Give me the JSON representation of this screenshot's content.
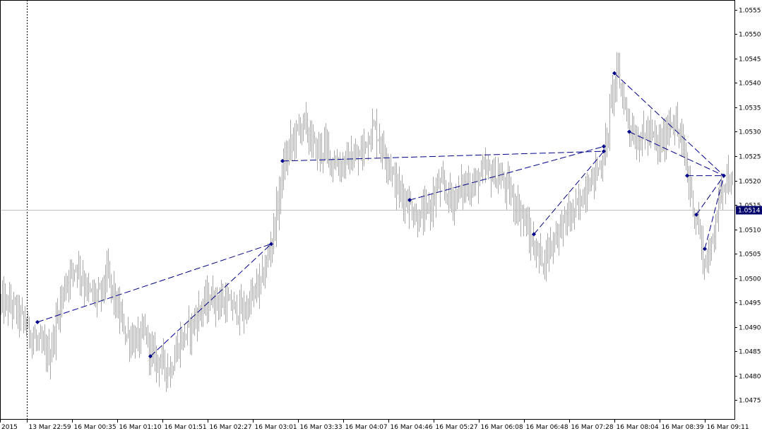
{
  "chart_data": {
    "type": "bar",
    "subtype": "ohlc-price-chart",
    "symbol_price_current": 1.0514,
    "current_price_label": "1.0514",
    "ylim": [
      1.0471,
      1.0557
    ],
    "y_ticks": [
      {
        "value": 1.0475,
        "label": "1.0475"
      },
      {
        "value": 1.048,
        "label": "1.0480"
      },
      {
        "value": 1.0485,
        "label": "1.0485"
      },
      {
        "value": 1.049,
        "label": "1.0490"
      },
      {
        "value": 1.0495,
        "label": "1.0495"
      },
      {
        "value": 1.05,
        "label": "1.0500"
      },
      {
        "value": 1.0505,
        "label": "1.0505"
      },
      {
        "value": 1.051,
        "label": "1.0510"
      },
      {
        "value": 1.0515,
        "label": "1.0515"
      },
      {
        "value": 1.052,
        "label": "1.0520"
      },
      {
        "value": 1.0525,
        "label": "1.0525"
      },
      {
        "value": 1.053,
        "label": "1.0530"
      },
      {
        "value": 1.0535,
        "label": "1.0535"
      },
      {
        "value": 1.054,
        "label": "1.0540"
      },
      {
        "value": 1.0545,
        "label": "1.0545"
      },
      {
        "value": 1.055,
        "label": "1.0550"
      },
      {
        "value": 1.0555,
        "label": "1.0555"
      }
    ],
    "x_ticks": [
      {
        "index": 0,
        "label": "2015"
      },
      {
        "index": 38,
        "label": "13 Mar 22:59"
      },
      {
        "index": 102,
        "label": "16 Mar 00:35"
      },
      {
        "index": 166,
        "label": "16 Mar 01:10"
      },
      {
        "index": 230,
        "label": "16 Mar 01:51"
      },
      {
        "index": 294,
        "label": "16 Mar 02:27"
      },
      {
        "index": 358,
        "label": "16 Mar 03:01"
      },
      {
        "index": 422,
        "label": "16 Mar 03:33"
      },
      {
        "index": 486,
        "label": "16 Mar 04:07"
      },
      {
        "index": 550,
        "label": "16 Mar 04:46"
      },
      {
        "index": 614,
        "label": "16 Mar 05:27"
      },
      {
        "index": 678,
        "label": "16 Mar 06:08"
      },
      {
        "index": 742,
        "label": "16 Mar 06:48"
      },
      {
        "index": 806,
        "label": "16 Mar 07:28"
      },
      {
        "index": 870,
        "label": "16 Mar 08:04"
      },
      {
        "index": 934,
        "label": "16 Mar 08:39"
      },
      {
        "index": 998,
        "label": "16 Mar 09:11"
      }
    ],
    "x_range": [
      0,
      1040
    ],
    "session_separator_index": 38,
    "price_path": [
      [
        0,
        1.0495
      ],
      [
        20,
        1.0494
      ],
      [
        38,
        1.049
      ],
      [
        50,
        1.0487
      ],
      [
        70,
        1.0484
      ],
      [
        85,
        1.0495
      ],
      [
        95,
        1.05
      ],
      [
        108,
        1.0503
      ],
      [
        125,
        1.0497
      ],
      [
        140,
        1.0496
      ],
      [
        152,
        1.0501
      ],
      [
        165,
        1.0494
      ],
      [
        180,
        1.0488
      ],
      [
        195,
        1.0487
      ],
      [
        205,
        1.0489
      ],
      [
        215,
        1.0484
      ],
      [
        228,
        1.0483
      ],
      [
        240,
        1.0481
      ],
      [
        255,
        1.0487
      ],
      [
        270,
        1.049
      ],
      [
        285,
        1.0494
      ],
      [
        300,
        1.0496
      ],
      [
        315,
        1.0495
      ],
      [
        330,
        1.0494
      ],
      [
        345,
        1.0493
      ],
      [
        360,
        1.0497
      ],
      [
        372,
        1.05
      ],
      [
        382,
        1.0506
      ],
      [
        392,
        1.0514
      ],
      [
        400,
        1.0522
      ],
      [
        410,
        1.0527
      ],
      [
        420,
        1.053
      ],
      [
        430,
        1.0532
      ],
      [
        440,
        1.0528
      ],
      [
        450,
        1.0526
      ],
      [
        460,
        1.0527
      ],
      [
        470,
        1.0524
      ],
      [
        480,
        1.0523
      ],
      [
        490,
        1.0524
      ],
      [
        500,
        1.0524
      ],
      [
        510,
        1.0525
      ],
      [
        520,
        1.0529
      ],
      [
        530,
        1.0531
      ],
      [
        540,
        1.0527
      ],
      [
        550,
        1.0524
      ],
      [
        560,
        1.0519
      ],
      [
        570,
        1.0517
      ],
      [
        580,
        1.0515
      ],
      [
        590,
        1.0512
      ],
      [
        600,
        1.0513
      ],
      [
        610,
        1.0515
      ],
      [
        620,
        1.0519
      ],
      [
        630,
        1.0518
      ],
      [
        640,
        1.0516
      ],
      [
        650,
        1.0518
      ],
      [
        660,
        1.0519
      ],
      [
        670,
        1.0519
      ],
      [
        680,
        1.0521
      ],
      [
        690,
        1.0522
      ],
      [
        700,
        1.0521
      ],
      [
        710,
        1.052
      ],
      [
        720,
        1.0518
      ],
      [
        730,
        1.0515
      ],
      [
        740,
        1.0513
      ],
      [
        750,
        1.0508
      ],
      [
        760,
        1.0505
      ],
      [
        770,
        1.0504
      ],
      [
        780,
        1.0507
      ],
      [
        790,
        1.051
      ],
      [
        800,
        1.0512
      ],
      [
        810,
        1.0513
      ],
      [
        820,
        1.0515
      ],
      [
        830,
        1.0519
      ],
      [
        840,
        1.0521
      ],
      [
        850,
        1.0523
      ],
      [
        858,
        1.0527
      ],
      [
        866,
        1.0538
      ],
      [
        874,
        1.0542
      ],
      [
        882,
        1.0537
      ],
      [
        890,
        1.0532
      ],
      [
        900,
        1.0528
      ],
      [
        910,
        1.0529
      ],
      [
        920,
        1.053
      ],
      [
        930,
        1.0527
      ],
      [
        940,
        1.0528
      ],
      [
        950,
        1.0533
      ],
      [
        960,
        1.053
      ],
      [
        968,
        1.0526
      ],
      [
        976,
        1.0519
      ],
      [
        984,
        1.0513
      ],
      [
        990,
        1.051
      ],
      [
        996,
        1.0503
      ],
      [
        1004,
        1.0504
      ],
      [
        1010,
        1.051
      ],
      [
        1016,
        1.0515
      ],
      [
        1022,
        1.0519
      ],
      [
        1028,
        1.0521
      ],
      [
        1035,
        1.0519
      ],
      [
        1040,
        1.0517
      ]
    ],
    "pattern_points": [
      {
        "x": 53,
        "y": 1.0491
      },
      {
        "x": 213,
        "y": 1.0484
      },
      {
        "x": 384,
        "y": 1.0507
      },
      {
        "x": 400,
        "y": 1.0524
      },
      {
        "x": 580,
        "y": 1.0516
      },
      {
        "x": 756,
        "y": 1.0509
      },
      {
        "x": 855,
        "y": 1.0526
      },
      {
        "x": 855,
        "y": 1.0527
      },
      {
        "x": 870,
        "y": 1.0542
      },
      {
        "x": 891,
        "y": 1.053
      },
      {
        "x": 973,
        "y": 1.0521
      },
      {
        "x": 986,
        "y": 1.0513
      },
      {
        "x": 998,
        "y": 1.0506
      },
      {
        "x": 1025,
        "y": 1.0521
      }
    ],
    "pattern_lines": [
      [
        0,
        2
      ],
      [
        1,
        2
      ],
      [
        3,
        6
      ],
      [
        4,
        7
      ],
      [
        5,
        6
      ],
      [
        8,
        13
      ],
      [
        9,
        13
      ],
      [
        10,
        13
      ],
      [
        11,
        13
      ],
      [
        12,
        13
      ]
    ],
    "colors": {
      "bars": "#a9a9a9",
      "pattern": "#00008b",
      "background": "#ffffff",
      "axis": "#000000",
      "price_line": "#c0c0c0",
      "price_badge": "#00006b"
    }
  }
}
